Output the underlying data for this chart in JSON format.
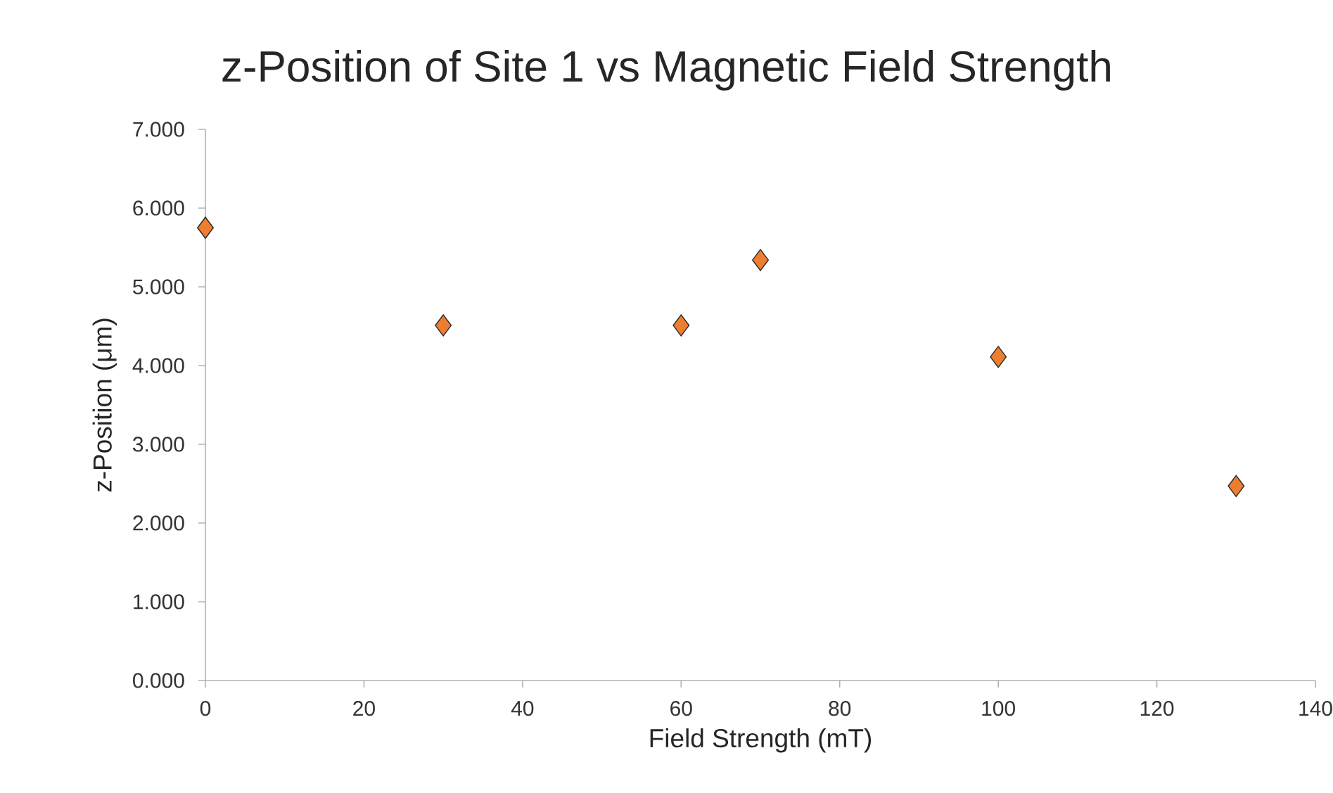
{
  "chart_data": {
    "type": "scatter",
    "title": "z-Position of Site 1 vs Magnetic Field Strength",
    "xlabel": "Field Strength (mT)",
    "ylabel": "z-Position (μm)",
    "x": [
      0,
      30,
      60,
      70,
      100,
      130
    ],
    "series": [
      {
        "color": "#ed7d31",
        "values": [
          5.75,
          4.51,
          4.51,
          5.34,
          4.11,
          2.47
        ]
      }
    ],
    "marker": "diamond",
    "grid": false,
    "xlim": [
      0,
      140
    ],
    "xticks": [
      0,
      20,
      40,
      60,
      80,
      100,
      120,
      140
    ],
    "ylim": [
      0,
      7
    ],
    "yticks": [
      {
        "value": 0,
        "label": "0.000"
      },
      {
        "value": 1,
        "label": "1.000"
      },
      {
        "value": 2,
        "label": "2.000"
      },
      {
        "value": 3,
        "label": "3.000"
      },
      {
        "value": 4,
        "label": "4.000"
      },
      {
        "value": 5,
        "label": "5.000"
      },
      {
        "value": 6,
        "label": "6.000"
      },
      {
        "value": 7,
        "label": "7.000"
      }
    ]
  }
}
